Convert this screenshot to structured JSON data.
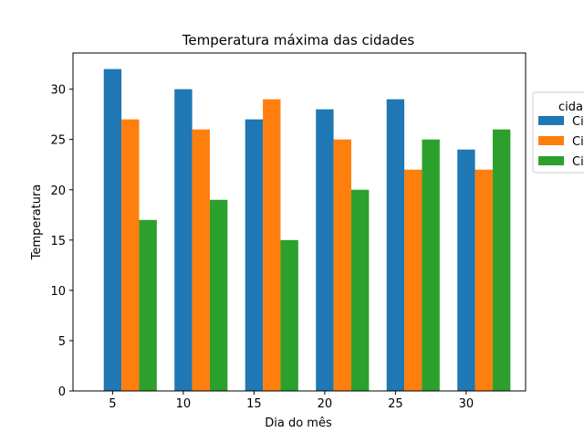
{
  "chart_data": {
    "type": "bar",
    "title": "Temperatura máxima das cidades",
    "xlabel": "Dia do mês",
    "ylabel": "Temperatura",
    "x": [
      5,
      10,
      15,
      20,
      25,
      30
    ],
    "xticks": [
      "5",
      "10",
      "15",
      "20",
      "25",
      "30"
    ],
    "yticks": [
      "0",
      "5",
      "10",
      "15",
      "20",
      "25",
      "30"
    ],
    "ylim": [
      0,
      33.6
    ],
    "grid": false,
    "legend": {
      "title": "cida",
      "placement": "outside-right",
      "entries": [
        "Ci",
        "Ci",
        "Ci"
      ]
    },
    "series": [
      {
        "color": "#1f77b4",
        "values": [
          32,
          30,
          27,
          28,
          29,
          24
        ]
      },
      {
        "color": "#ff7f0e",
        "values": [
          27,
          26,
          29,
          25,
          22,
          22
        ]
      },
      {
        "color": "#2ca02c",
        "values": [
          17,
          19,
          15,
          20,
          25,
          26
        ]
      }
    ]
  }
}
